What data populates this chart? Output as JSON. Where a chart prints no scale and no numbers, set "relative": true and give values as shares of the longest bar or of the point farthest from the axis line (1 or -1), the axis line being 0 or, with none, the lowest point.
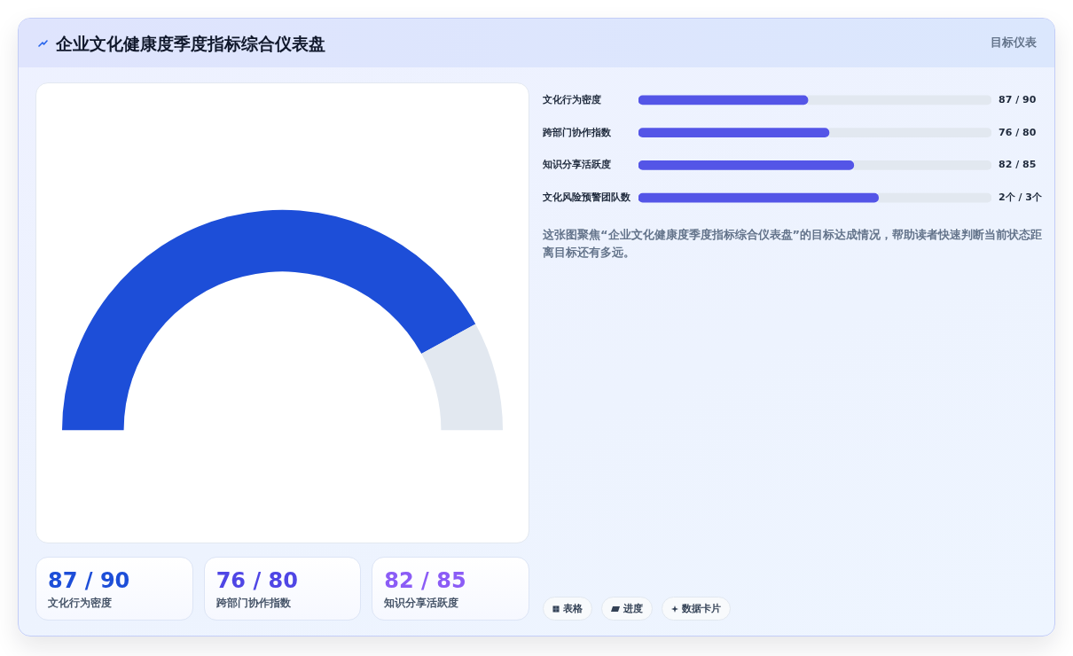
{
  "chart_data": [
    {
      "type": "donut",
      "title": "企业文化健康度季度指标综合仪表盘",
      "categories": [
        null,
        null
      ],
      "values": [
        84,
        16
      ],
      "colors": [
        "#1d4ed8",
        "#e2e8f0"
      ]
    },
    {
      "type": "bar",
      "subtitle": "目标仪表",
      "orientation": "horizontal",
      "stacked": true,
      "relative": true,
      "categories": [
        "文化行为密度",
        "跨部门协作指数",
        "知识分享活跃度",
        "文化风险预警团队数"
      ],
      "series": [
        {
          "color": "#5455e7",
          "values": [
            0.48,
            0.54,
            0.61,
            0.68
          ]
        },
        {
          "color": "#e2e8f0",
          "values": [
            0.52,
            0.46,
            0.39,
            0.32
          ]
        }
      ],
      "annotations": [
        "87 / 90",
        "76 / 80",
        "82 / 85",
        "2个 / 3个",
        "这张图聚焦“企业文化健康度季度指标综合仪表盘”的目标达成情况，帮助读者快速判断当前状态距离目标还有多远。"
      ]
    },
    {
      "type": "other",
      "annotations": [
        "87 / 90",
        "文化行为密度",
        "76 / 80",
        "跨部门协作指数",
        "82 / 85",
        "知识分享活跃度"
      ]
    },
    {
      "type": "other",
      "annotations": [
        "表格",
        "进度",
        "数据卡片"
      ]
    }
  ]
}
